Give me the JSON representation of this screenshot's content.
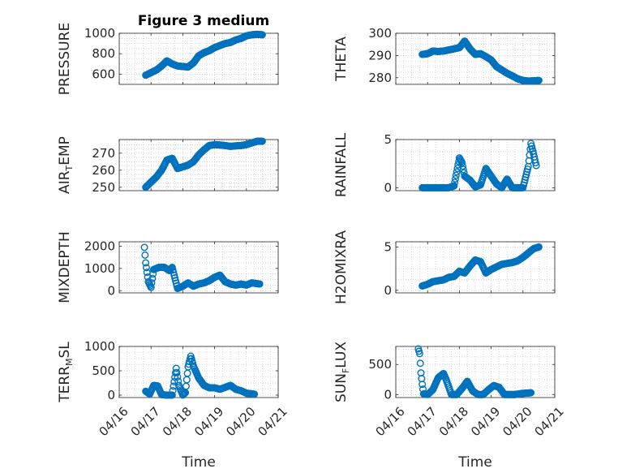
{
  "figure": {
    "title": "Figure 3 medium"
  },
  "colors": {
    "marker": "#0072BD",
    "axis": "#262626",
    "grid": "#bdbdbd",
    "background": "#ffffff"
  },
  "x_ticks": [
    "04/16",
    "04/17",
    "04/18",
    "04/19",
    "04/20",
    "04/21"
  ],
  "x_label": "Time",
  "chart_data": [
    {
      "type": "scatter",
      "ylabel": "PRESSURE",
      "ylim": [
        500,
        1000
      ],
      "yticks": [
        600,
        800,
        1000
      ],
      "grid": true,
      "x": [
        "04/16 20:00",
        "04/17 00:00",
        "04/17 04:00",
        "04/17 08:00",
        "04/17 12:00",
        "04/17 16:00",
        "04/17 20:00",
        "04/18 00:00",
        "04/18 04:00",
        "04/18 08:00",
        "04/18 12:00",
        "04/18 16:00",
        "04/18 20:00",
        "04/19 00:00",
        "04/19 04:00",
        "04/19 08:00",
        "04/19 12:00",
        "04/19 16:00",
        "04/19 20:00",
        "04/20 00:00",
        "04/20 04:00",
        "04/20 08:00",
        "04/20 12:00"
      ],
      "values": [
        590,
        615,
        640,
        680,
        730,
        700,
        680,
        675,
        670,
        710,
        780,
        810,
        830,
        860,
        880,
        900,
        910,
        935,
        950,
        975,
        985,
        990,
        985
      ]
    },
    {
      "type": "scatter",
      "ylabel": "THETA",
      "ylim": [
        277,
        300
      ],
      "yticks": [
        280,
        290,
        300
      ],
      "grid": true,
      "x": [
        "04/16 20:00",
        "04/17 00:00",
        "04/17 04:00",
        "04/17 08:00",
        "04/17 12:00",
        "04/17 16:00",
        "04/17 20:00",
        "04/18 00:00",
        "04/18 04:00",
        "04/18 08:00",
        "04/18 12:00",
        "04/18 16:00",
        "04/18 20:00",
        "04/19 00:00",
        "04/19 04:00",
        "04/19 08:00",
        "04/19 12:00",
        "04/19 16:00",
        "04/19 20:00",
        "04/20 00:00",
        "04/20 04:00",
        "04/20 08:00",
        "04/20 12:00"
      ],
      "values": [
        290.5,
        290.8,
        292,
        291.8,
        292,
        292.5,
        293,
        293.5,
        296.5,
        293,
        290.5,
        290.8,
        289.5,
        288,
        285,
        283.5,
        282,
        280.8,
        279.5,
        278.8,
        278.5,
        278.6,
        278.8
      ]
    },
    {
      "type": "scatter",
      "ylabel": "AIR_TEMP",
      "ylim": [
        248,
        278
      ],
      "yticks": [
        250,
        260,
        270
      ],
      "grid": true,
      "x": [
        "04/16 20:00",
        "04/17 00:00",
        "04/17 04:00",
        "04/17 08:00",
        "04/17 12:00",
        "04/17 16:00",
        "04/17 20:00",
        "04/18 00:00",
        "04/18 04:00",
        "04/18 08:00",
        "04/18 12:00",
        "04/18 16:00",
        "04/18 20:00",
        "04/19 00:00",
        "04/19 04:00",
        "04/19 08:00",
        "04/19 12:00",
        "04/19 16:00",
        "04/19 20:00",
        "04/20 00:00",
        "04/20 04:00",
        "04/20 08:00",
        "04/20 12:00"
      ],
      "values": [
        250,
        253,
        256,
        260,
        266,
        267,
        261,
        262,
        263,
        265,
        269,
        272,
        274.5,
        275,
        274.8,
        274.5,
        274,
        274.3,
        274.5,
        275,
        276,
        277,
        277
      ]
    },
    {
      "type": "scatter",
      "ylabel": "RAINFALL",
      "ylim": [
        -0.3,
        5
      ],
      "yticks": [
        0,
        5
      ],
      "grid": true,
      "x": [
        "04/16 20:00",
        "04/17 00:00",
        "04/17 04:00",
        "04/17 08:00",
        "04/17 12:00",
        "04/17 16:00",
        "04/17 20:00",
        "04/18 00:00",
        "04/18 02:00",
        "04/18 04:00",
        "04/18 08:00",
        "04/18 12:00",
        "04/18 16:00",
        "04/18 20:00",
        "04/19 00:00",
        "04/19 04:00",
        "04/19 08:00",
        "04/19 12:00",
        "04/19 16:00",
        "04/19 20:00",
        "04/20 00:00",
        "04/20 04:00",
        "04/20 06:00",
        "04/20 08:00",
        "04/20 10:00"
      ],
      "values": [
        0,
        0,
        0,
        0,
        0,
        0,
        0.2,
        3.1,
        2.6,
        1.2,
        0.8,
        0.1,
        0.3,
        2,
        1.2,
        0.4,
        0,
        0.9,
        0,
        0,
        0,
        2.2,
        4.6,
        3.5,
        2.3
      ]
    },
    {
      "type": "scatter",
      "ylabel": "MIXDEPTH",
      "ylim": [
        -100,
        2200
      ],
      "yticks": [
        0,
        1000,
        2000
      ],
      "grid": true,
      "x": [
        "04/16 19:00",
        "04/16 20:00",
        "04/16 22:00",
        "04/17 00:00",
        "04/17 02:00",
        "04/17 06:00",
        "04/17 10:00",
        "04/17 14:00",
        "04/17 16:00",
        "04/17 20:00",
        "04/18 00:00",
        "04/18 04:00",
        "04/18 08:00",
        "04/18 12:00",
        "04/18 16:00",
        "04/18 20:00",
        "04/19 00:00",
        "04/19 04:00",
        "04/19 08:00",
        "04/19 12:00",
        "04/19 16:00",
        "04/19 20:00",
        "04/20 00:00",
        "04/20 04:00",
        "04/20 10:00"
      ],
      "values": [
        1950,
        1250,
        400,
        150,
        950,
        1050,
        1050,
        900,
        1050,
        100,
        200,
        350,
        200,
        300,
        350,
        450,
        600,
        700,
        400,
        300,
        250,
        300,
        250,
        350,
        300
      ]
    },
    {
      "type": "scatter",
      "ylabel": "H2OMIXRA",
      "ylim": [
        -0.3,
        5.6
      ],
      "yticks": [
        0,
        5
      ],
      "grid": true,
      "x": [
        "04/16 20:00",
        "04/17 00:00",
        "04/17 04:00",
        "04/17 08:00",
        "04/17 12:00",
        "04/17 16:00",
        "04/17 20:00",
        "04/18 00:00",
        "04/18 04:00",
        "04/18 08:00",
        "04/18 12:00",
        "04/18 16:00",
        "04/18 20:00",
        "04/19 00:00",
        "04/19 04:00",
        "04/19 08:00",
        "04/19 12:00",
        "04/19 16:00",
        "04/19 20:00",
        "04/20 00:00",
        "04/20 04:00",
        "04/20 08:00",
        "04/20 12:00"
      ],
      "values": [
        0.5,
        0.7,
        1,
        1.1,
        1.2,
        1.5,
        1.6,
        2.2,
        2,
        2.8,
        3.5,
        3.3,
        2,
        2.4,
        2.7,
        3,
        3.1,
        3.2,
        3.4,
        3.8,
        4.3,
        4.8,
        5
      ]
    },
    {
      "type": "scatter",
      "ylabel": "TERR_MSL",
      "ylim": [
        -50,
        1000
      ],
      "yticks": [
        0,
        500,
        1000
      ],
      "grid": true,
      "x": [
        "04/16 20:00",
        "04/16 23:00",
        "04/17 02:00",
        "04/17 05:00",
        "04/17 08:00",
        "04/17 12:00",
        "04/17 16:00",
        "04/17 19:00",
        "04/17 21:00",
        "04/18 00:00",
        "04/18 02:00",
        "04/18 04:00",
        "04/18 06:00",
        "04/18 08:00",
        "04/18 12:00",
        "04/18 16:00",
        "04/18 20:00",
        "04/19 00:00",
        "04/19 04:00",
        "04/19 08:00",
        "04/19 12:00",
        "04/19 16:00",
        "04/19 20:00",
        "04/20 00:00",
        "04/20 06:00"
      ],
      "values": [
        80,
        20,
        200,
        190,
        10,
        0,
        0,
        550,
        200,
        0,
        50,
        580,
        800,
        600,
        350,
        200,
        150,
        150,
        120,
        160,
        200,
        120,
        90,
        40,
        20
      ]
    },
    {
      "type": "scatter",
      "ylabel": "SUN_FLUX",
      "ylim": [
        -50,
        800
      ],
      "yticks": [
        0,
        500
      ],
      "grid": true,
      "x": [
        "04/16 17:00",
        "04/16 18:00",
        "04/16 19:00",
        "04/16 20:00",
        "04/16 21:00",
        "04/17 00:00",
        "04/17 04:00",
        "04/17 08:00",
        "04/17 12:00",
        "04/17 14:00",
        "04/17 18:00",
        "04/17 22:00",
        "04/18 02:00",
        "04/18 06:00",
        "04/18 10:00",
        "04/18 14:00",
        "04/18 18:00",
        "04/18 22:00",
        "04/19 02:00",
        "04/19 06:00",
        "04/19 10:00",
        "04/19 14:00",
        "04/19 18:00",
        "04/20 00:00",
        "04/20 06:00"
      ],
      "values": [
        760,
        680,
        360,
        170,
        10,
        0,
        80,
        280,
        350,
        250,
        0,
        0,
        100,
        220,
        60,
        0,
        0,
        80,
        150,
        120,
        0,
        0,
        0,
        20,
        30
      ]
    }
  ]
}
